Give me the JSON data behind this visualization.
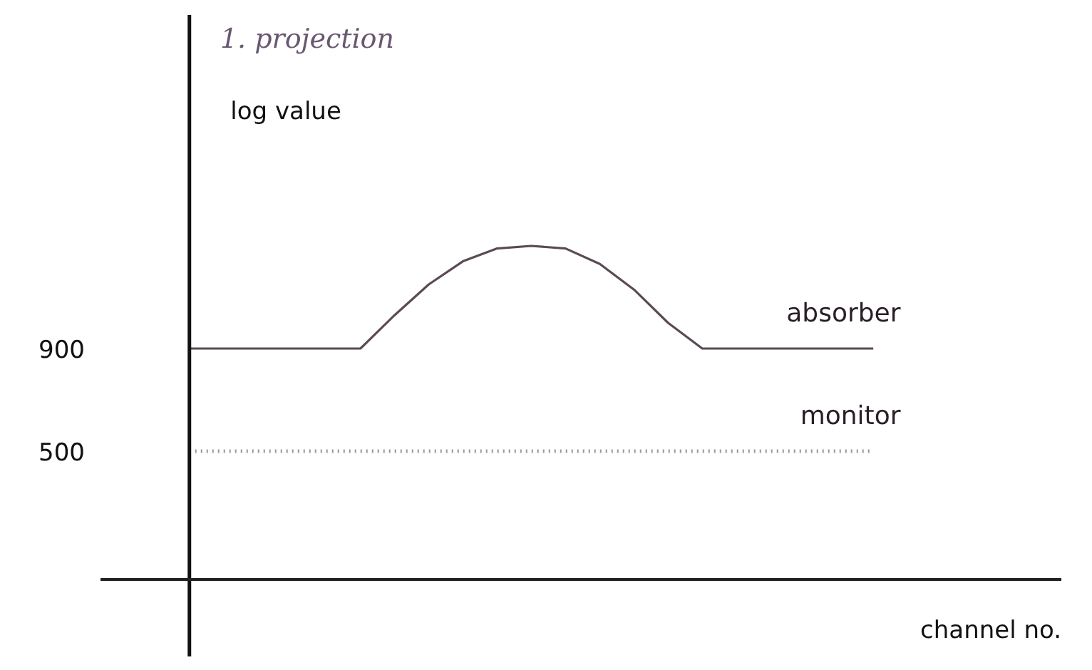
{
  "chart_data": {
    "type": "line",
    "title": "1. projection",
    "ylabel": "log value",
    "xlabel": "channel no.",
    "categories": [
      null,
      null,
      null,
      null,
      null,
      null,
      null,
      null,
      null,
      null,
      null,
      null,
      null,
      null,
      null,
      null,
      null,
      null,
      null,
      null,
      null
    ],
    "series": [
      {
        "name": "absorber",
        "color": "#5a4a55",
        "line_style": "solid",
        "values": [
          900,
          900,
          900,
          900,
          900,
          900,
          1030,
          1150,
          1240,
          1290,
          1300,
          1290,
          1230,
          1130,
          1000,
          900,
          900,
          900,
          900,
          900,
          900
        ]
      },
      {
        "name": "monitor",
        "color": "#9a9a9a",
        "line_style": "dotted",
        "values": [
          500,
          500,
          500,
          500,
          500,
          500,
          500,
          500,
          500,
          500,
          500,
          500,
          500,
          500,
          500,
          500,
          500,
          500,
          500,
          500,
          500
        ]
      }
    ],
    "ylim": [
      -300,
      2200
    ],
    "yticks": [
      500,
      900
    ],
    "grid": false,
    "marker": "none"
  }
}
